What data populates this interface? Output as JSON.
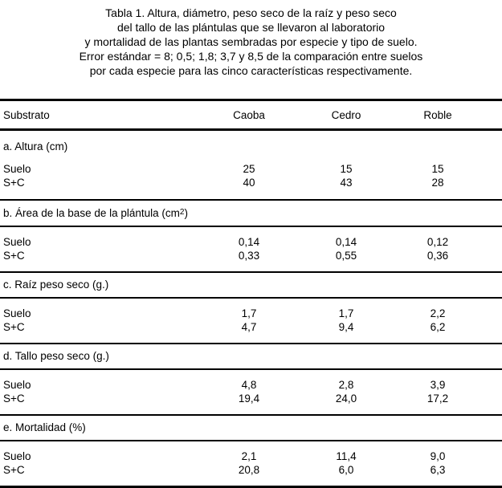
{
  "colors": {
    "text": "#000000",
    "background": "#ffffff"
  },
  "title": {
    "lines": [
      "Tabla 1. Altura, diámetro, peso seco de la raíz y peso seco",
      "del tallo de las plántulas que se llevaron al laboratorio",
      "y mortalidad de las plantas sembradas por especie y tipo de suelo.",
      "Error estándar = 8; 0,5; 1,8; 3,7 y 8,5 de la comparación entre suelos",
      "por cada especie para las cinco características respectivamente."
    ]
  },
  "table": {
    "header": {
      "substrate_label": "Substrato",
      "species": [
        "Caoba",
        "Cedro",
        "Roble"
      ]
    },
    "sections": [
      {
        "label": "a. Altura (cm)",
        "rows": [
          {
            "name": "Suelo",
            "values": [
              "25",
              "15",
              "15"
            ]
          },
          {
            "name": "S+C",
            "values": [
              "40",
              "43",
              "28"
            ]
          }
        ]
      },
      {
        "label_pre": "b. Área de la base de la plántula (cm",
        "label_sup": "2",
        "label_post": ")",
        "rows": [
          {
            "name": "Suelo",
            "values": [
              "0,14",
              "0,14",
              "0,12"
            ]
          },
          {
            "name": "S+C",
            "values": [
              "0,33",
              "0,55",
              "0,36"
            ]
          }
        ]
      },
      {
        "label": "c. Raíz peso seco (g.)",
        "rows": [
          {
            "name": "Suelo",
            "values": [
              "1,7",
              "1,7",
              "2,2"
            ]
          },
          {
            "name": "S+C",
            "values": [
              "4,7",
              "9,4",
              "6,2"
            ]
          }
        ]
      },
      {
        "label": "d. Tallo peso seco (g.)",
        "rows": [
          {
            "name": "Suelo",
            "values": [
              "4,8",
              "2,8",
              "3,9"
            ]
          },
          {
            "name": "S+C",
            "values": [
              "19,4",
              "24,0",
              "17,2"
            ]
          }
        ]
      },
      {
        "label": "e. Mortalidad (%)",
        "rows": [
          {
            "name": "Suelo",
            "values": [
              "2,1",
              "11,4",
              "9,0"
            ]
          },
          {
            "name": "S+C",
            "values": [
              "20,8",
              "6,0",
              "6,3"
            ]
          }
        ]
      }
    ]
  }
}
